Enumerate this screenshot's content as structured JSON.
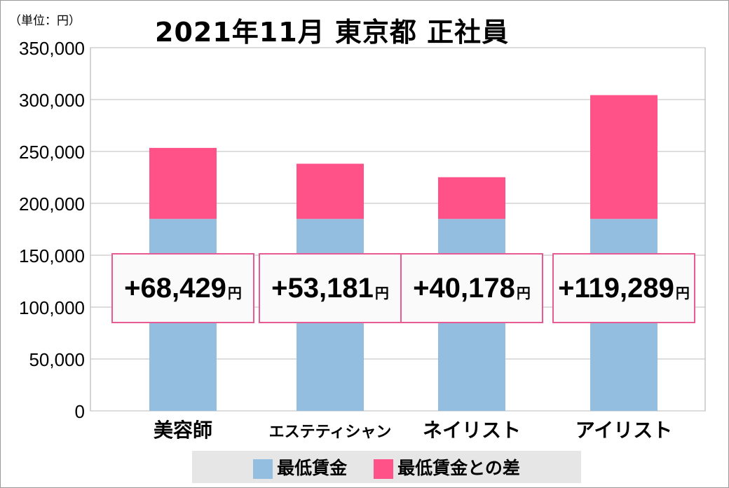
{
  "chart_data": {
    "type": "bar",
    "stacked": true,
    "title": "2021年11月 東京都 正社員",
    "unit_label": "（単位：円）",
    "categories": [
      "美容師",
      "エステティシャン",
      "ネイリスト",
      "アイリスト"
    ],
    "series": [
      {
        "name": "最低賃金",
        "color": "#93bedf",
        "values": [
          185000,
          185000,
          185000,
          185000
        ]
      },
      {
        "name": "最低賃金との差",
        "color": "#ff5289",
        "values": [
          68429,
          53181,
          40178,
          119289
        ]
      }
    ],
    "data_labels": [
      "+68,429",
      "+53,181",
      "+40,178",
      "+119,289"
    ],
    "data_label_suffix": "円",
    "ylim": [
      0,
      350000
    ],
    "yticks": [
      "0",
      "50,000",
      "100,000",
      "150,000",
      "200,000",
      "250,000",
      "300,000",
      "350,000"
    ],
    "grid": true,
    "legend": "bottom"
  }
}
